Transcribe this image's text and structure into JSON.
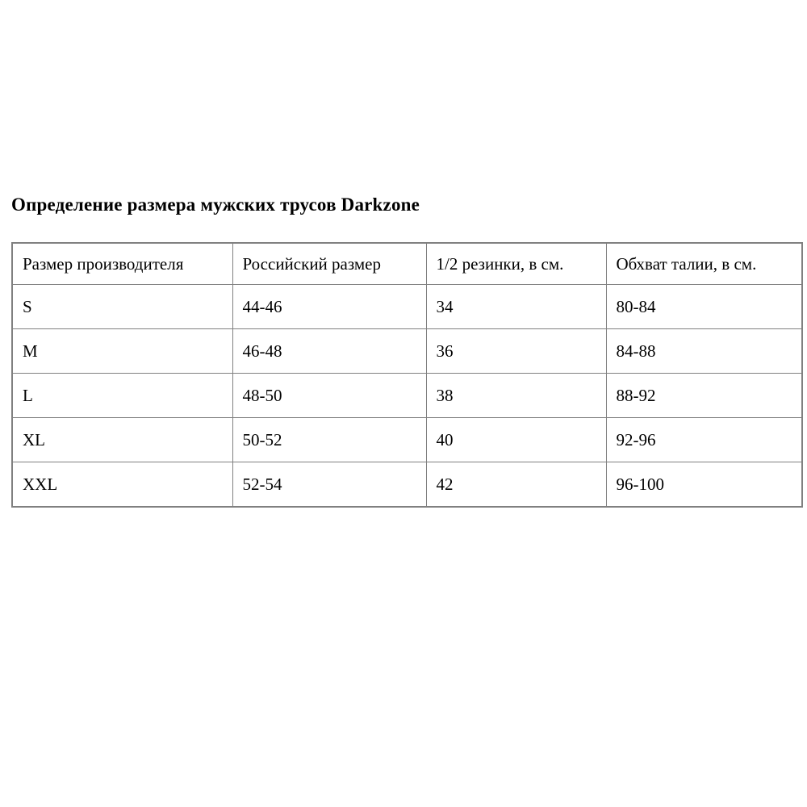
{
  "page": {
    "title": "Определение размера мужских трусов Darkzone"
  },
  "table": {
    "headers": [
      "Размер производителя",
      "Российский размер",
      "1/2 резинки, в см.",
      "Обхват талии, в см."
    ],
    "rows": [
      [
        "S",
        "44-46",
        "34",
        "80-84"
      ],
      [
        "M",
        "46-48",
        "36",
        "84-88"
      ],
      [
        "L",
        "48-50",
        "38",
        "88-92"
      ],
      [
        "XL",
        "50-52",
        "40",
        "92-96"
      ],
      [
        "XXL",
        "52-54",
        "42",
        "96-100"
      ]
    ]
  },
  "colors": {
    "border": "#808080",
    "text": "#000000",
    "background": "#ffffff"
  }
}
